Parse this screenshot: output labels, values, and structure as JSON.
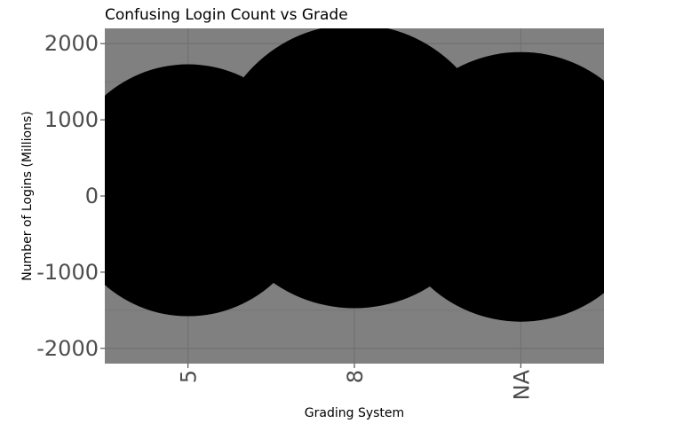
{
  "chart_data": {
    "type": "scatter",
    "title": "Confusing Login Count vs Grade",
    "xlabel": "Grading System",
    "ylabel": "Number of Logins (Millions)",
    "categories": [
      "5",
      "8",
      "NA"
    ],
    "values": [
      75,
      390,
      120
    ],
    "ylim": [
      -2200,
      2200
    ],
    "yticks": [
      2000,
      1000,
      0,
      -1000,
      -2000
    ],
    "yticklabels": [
      "2000",
      "1000",
      "0",
      "-1000",
      "-2000"
    ],
    "grid": true,
    "legend": "none",
    "colors": {
      "panel": "#808080",
      "grid": "#6e6e6e",
      "point": "#000000",
      "tick_text": "#4d4d4d"
    }
  }
}
